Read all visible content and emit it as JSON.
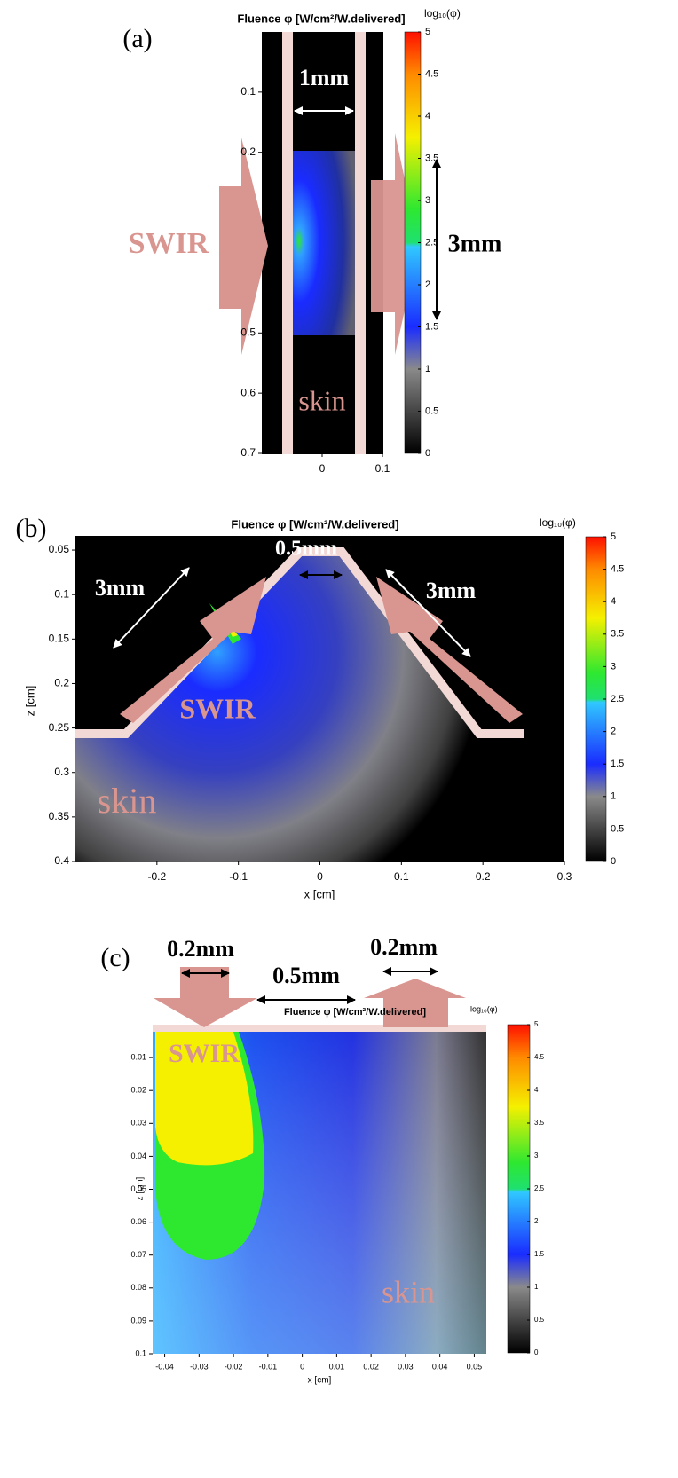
{
  "panels": [
    {
      "label": "(a)",
      "title": "Fluence φ [W/cm²/W.delivered]",
      "colorbar_label": "log₁₀(φ)",
      "xlim": [
        -0.1,
        0.1
      ],
      "xticks": [
        0,
        0.1
      ],
      "ylim": [
        0,
        0.7
      ],
      "yticks": [
        0.1,
        0.2,
        0.5,
        0.6,
        0.7
      ],
      "colorbar_lim": [
        0,
        5
      ],
      "colorbar_ticks": [
        0,
        0.5,
        1,
        1.5,
        2,
        2.5,
        3,
        3.5,
        4,
        4.5,
        5
      ],
      "annotations": [
        "1mm",
        "SWIR",
        "3mm",
        "skin"
      ]
    },
    {
      "label": "(b)",
      "title": "Fluence φ [W/cm²/W.delivered]",
      "colorbar_label": "log₁₀(φ)",
      "xlabel": "x [cm]",
      "ylabel": "z [cm]",
      "xlim": [
        -0.3,
        0.3
      ],
      "xticks": [
        -0.2,
        -0.1,
        0,
        0.1,
        0.2,
        0.3
      ],
      "ylim": [
        0.034,
        0.4
      ],
      "yticks": [
        0.05,
        0.1,
        0.15,
        0.2,
        0.25,
        0.3,
        0.35,
        0.4
      ],
      "colorbar_lim": [
        0,
        5
      ],
      "colorbar_ticks": [
        0,
        0.5,
        1,
        1.5,
        2,
        2.5,
        3,
        3.5,
        4,
        4.5,
        5
      ],
      "annotations": [
        "0.5mm",
        "3mm",
        "3mm",
        "SWIR",
        "skin"
      ]
    },
    {
      "label": "(c)",
      "title": "Fluence φ [W/cm²/W.delivered]",
      "colorbar_label": "log₁₀(φ)",
      "xlabel": "x [cm]",
      "ylabel": "z [cm]",
      "xlim": [
        -0.0435,
        0.0535
      ],
      "xticks": [
        -0.04,
        -0.03,
        -0.02,
        -0.01,
        0,
        0.01,
        0.02,
        0.03,
        0.04,
        0.05
      ],
      "ylim": [
        0,
        0.1
      ],
      "yticks": [
        0.01,
        0.02,
        0.03,
        0.04,
        0.05,
        0.06,
        0.07,
        0.08,
        0.09,
        0.1
      ],
      "colorbar_lim": [
        0,
        5
      ],
      "colorbar_ticks": [
        0,
        0.5,
        1,
        1.5,
        2,
        2.5,
        3,
        3.5,
        4,
        4.5,
        5
      ],
      "annotations": [
        "0.2mm",
        "0.5mm",
        "0.2mm",
        "SWIR",
        "skin"
      ]
    }
  ]
}
